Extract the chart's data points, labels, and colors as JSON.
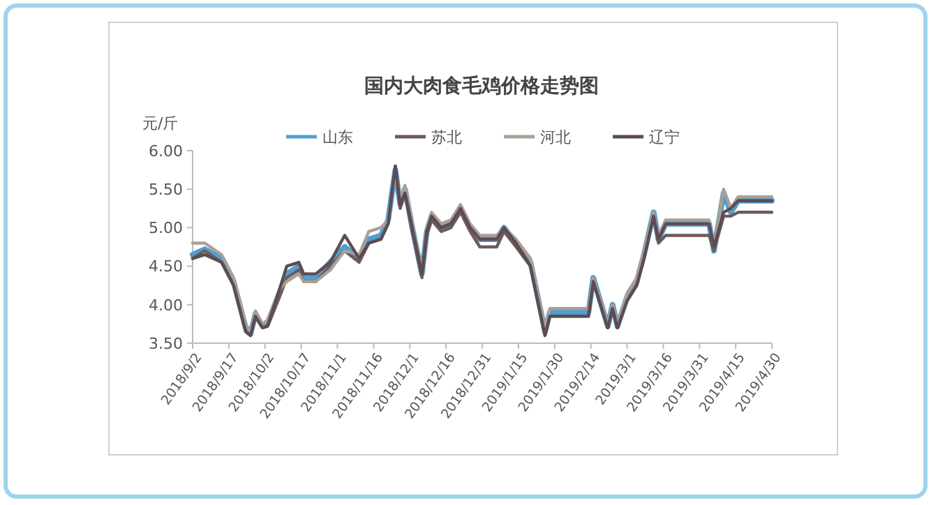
{
  "chart_data": {
    "type": "line",
    "title": "国内大肉食毛鸡价格走势图",
    "ylabel": "元/斤",
    "x": [
      "2018-09-02",
      "2018-09-07",
      "2018-09-14",
      "2018-09-19",
      "2018-09-24",
      "2018-09-26",
      "2018-09-28",
      "2018-10-01",
      "2018-10-03",
      "2018-10-08",
      "2018-10-11",
      "2018-10-16",
      "2018-10-18",
      "2018-10-23",
      "2018-10-29",
      "2018-11-04",
      "2018-11-10",
      "2018-11-14",
      "2018-11-19",
      "2018-11-22",
      "2018-11-25",
      "2018-11-27",
      "2018-11-29",
      "2018-12-02",
      "2018-12-06",
      "2018-12-08",
      "2018-12-10",
      "2018-12-14",
      "2018-12-18",
      "2018-12-22",
      "2018-12-26",
      "2018-12-30",
      "2019-01-06",
      "2019-01-09",
      "2019-01-14",
      "2019-01-20",
      "2019-01-26",
      "2019-01-28",
      "2019-02-13",
      "2019-02-15",
      "2019-02-21",
      "2019-02-23",
      "2019-02-25",
      "2019-03-01",
      "2019-03-05",
      "2019-03-08",
      "2019-03-12",
      "2019-03-14",
      "2019-03-17",
      "2019-04-04",
      "2019-04-06",
      "2019-04-10",
      "2019-04-13",
      "2019-04-16",
      "2019-04-30"
    ],
    "series": [
      {
        "name": "山东",
        "color": "#4f9fd0",
        "values": [
          4.65,
          4.72,
          4.6,
          4.3,
          3.7,
          3.62,
          3.88,
          3.72,
          3.75,
          4.15,
          4.4,
          4.5,
          4.35,
          4.35,
          4.55,
          4.75,
          4.6,
          4.85,
          4.9,
          5.1,
          5.75,
          5.3,
          5.5,
          5.0,
          4.4,
          4.95,
          5.15,
          5.0,
          5.05,
          5.25,
          5.0,
          4.85,
          4.85,
          5.0,
          4.8,
          4.55,
          3.65,
          3.9,
          3.9,
          4.35,
          3.72,
          4.0,
          3.72,
          4.1,
          4.3,
          4.65,
          5.2,
          4.85,
          5.05,
          5.05,
          4.7,
          5.45,
          5.2,
          5.35,
          5.35
        ]
      },
      {
        "name": "苏北",
        "color": "#6e5a5e",
        "values": [
          4.6,
          4.7,
          4.55,
          4.25,
          3.65,
          3.6,
          3.85,
          3.7,
          3.72,
          4.1,
          4.35,
          4.45,
          4.3,
          4.3,
          4.5,
          4.7,
          4.55,
          4.8,
          4.85,
          5.05,
          5.8,
          5.25,
          5.45,
          4.95,
          4.35,
          4.9,
          5.1,
          4.95,
          5.0,
          5.2,
          4.95,
          4.75,
          4.75,
          4.95,
          4.75,
          4.5,
          3.6,
          3.85,
          3.85,
          4.3,
          3.7,
          3.95,
          3.7,
          4.05,
          4.25,
          4.6,
          5.15,
          4.8,
          4.9,
          4.9,
          4.7,
          5.15,
          5.15,
          5.2,
          5.2
        ]
      },
      {
        "name": "河北",
        "color": "#a8a196",
        "values": [
          4.8,
          4.8,
          4.65,
          4.35,
          3.75,
          3.65,
          3.92,
          3.75,
          3.8,
          4.2,
          4.3,
          4.4,
          4.3,
          4.3,
          4.45,
          4.7,
          4.65,
          4.95,
          5.0,
          5.1,
          5.7,
          5.4,
          5.55,
          5.05,
          4.45,
          5.0,
          5.2,
          5.05,
          5.1,
          5.3,
          5.05,
          4.9,
          4.9,
          5.0,
          4.85,
          4.6,
          3.7,
          3.95,
          3.95,
          4.35,
          3.75,
          4.0,
          3.75,
          4.15,
          4.35,
          4.7,
          5.2,
          4.9,
          5.1,
          5.1,
          4.75,
          5.5,
          5.25,
          5.4,
          5.4
        ]
      },
      {
        "name": "辽宁",
        "color": "#5e4b52",
        "values": [
          4.6,
          4.65,
          4.55,
          4.25,
          3.65,
          3.6,
          3.85,
          3.7,
          3.72,
          4.2,
          4.5,
          4.55,
          4.4,
          4.4,
          4.55,
          4.9,
          4.6,
          4.8,
          4.85,
          5.05,
          5.8,
          5.3,
          5.45,
          5.0,
          4.4,
          4.95,
          5.15,
          5.0,
          5.05,
          5.25,
          5.0,
          4.85,
          4.85,
          5.0,
          4.8,
          4.5,
          3.6,
          3.85,
          3.85,
          4.3,
          3.7,
          3.95,
          3.7,
          4.05,
          4.25,
          4.6,
          5.15,
          4.85,
          5.05,
          5.05,
          4.75,
          5.2,
          5.25,
          5.35,
          5.35
        ]
      }
    ],
    "ylim": [
      3.5,
      6.0
    ],
    "yticks": [
      {
        "value": 3.5,
        "label": "3.50"
      },
      {
        "value": 4.0,
        "label": "4.00"
      },
      {
        "value": 4.5,
        "label": "4.50"
      },
      {
        "value": 5.0,
        "label": "5.00"
      },
      {
        "value": 5.5,
        "label": "5.50"
      },
      {
        "value": 6.0,
        "label": "6.00"
      }
    ],
    "xlim": [
      "2018-09-02",
      "2019-04-30"
    ],
    "xticks": [
      {
        "value": "2018-09-02",
        "label": "2018/9/2"
      },
      {
        "value": "2018-09-17",
        "label": "2018/9/17"
      },
      {
        "value": "2018-10-02",
        "label": "2018/10/2"
      },
      {
        "value": "2018-10-17",
        "label": "2018/10/17"
      },
      {
        "value": "2018-11-01",
        "label": "2018/11/1"
      },
      {
        "value": "2018-11-16",
        "label": "2018/11/16"
      },
      {
        "value": "2018-12-01",
        "label": "2018/12/1"
      },
      {
        "value": "2018-12-16",
        "label": "2018/12/16"
      },
      {
        "value": "2018-12-31",
        "label": "2018/12/31"
      },
      {
        "value": "2019-01-15",
        "label": "2019/1/15"
      },
      {
        "value": "2019-01-30",
        "label": "2019/1/30"
      },
      {
        "value": "2019-02-14",
        "label": "2019/2/14"
      },
      {
        "value": "2019-03-01",
        "label": "2019/3/1"
      },
      {
        "value": "2019-03-16",
        "label": "2019/3/16"
      },
      {
        "value": "2019-03-31",
        "label": "2019/3/31"
      },
      {
        "value": "2019-04-15",
        "label": "2019/4/15"
      },
      {
        "value": "2019-04-30",
        "label": "2019/4/30"
      }
    ],
    "grid": false,
    "legend": "top",
    "marker": "none",
    "line_style": "solid"
  }
}
